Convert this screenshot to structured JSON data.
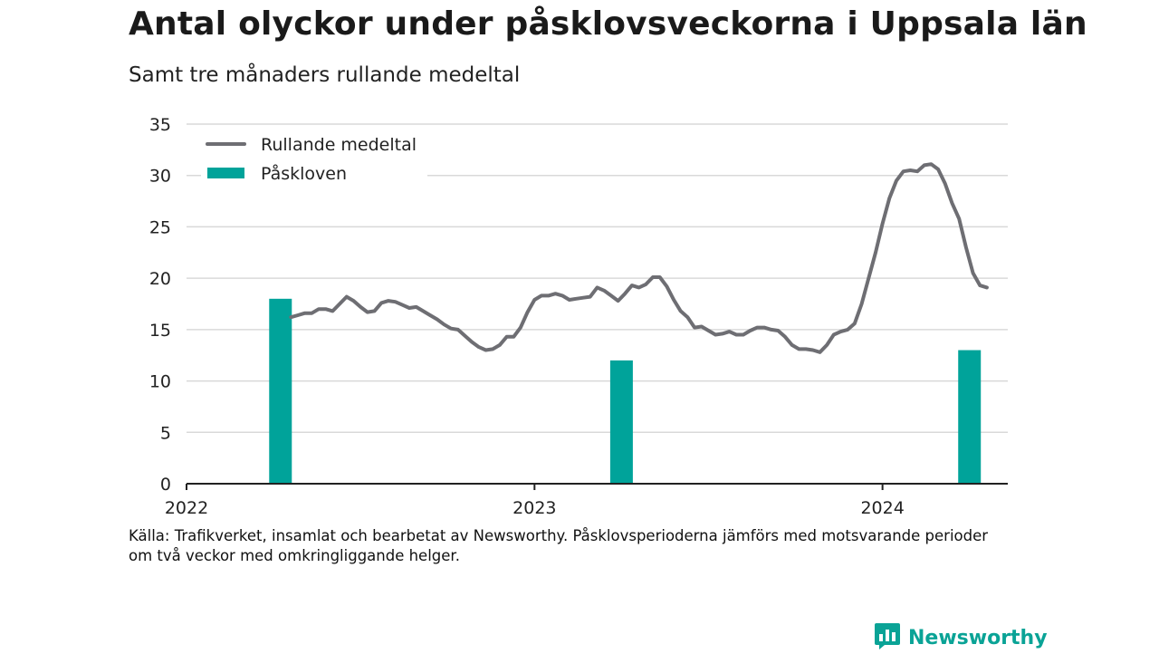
{
  "title": "Antal olyckor under påsklovsveckorna i Uppsala län",
  "subtitle": "Samt tre månaders rullande medeltal",
  "source_line1": "Källa: Trafikverket, insamlat och bearbetat av Newsworthy. Påsklovsperioderna jämförs med motsvarande perioder",
  "source_line2": "om två veckor med omkringliggande helger.",
  "brand": {
    "name": "Newsworthy",
    "logo_icon": "newsworthy-chart-bubble-icon"
  },
  "colors": {
    "line": "#6e6e73",
    "bar": "#00a39a",
    "grid": "#d9d9d9",
    "axis": "#222222"
  },
  "chart_data": {
    "type": "bar+line",
    "ylim": [
      0,
      35
    ],
    "yticks": [
      0,
      5,
      10,
      15,
      20,
      25,
      30,
      35
    ],
    "xlim": [
      2022.0,
      2024.36
    ],
    "xticks": [
      2022,
      2023,
      2024
    ],
    "xtick_labels": [
      "2022",
      "2023",
      "2024"
    ],
    "grid": true,
    "legend_position": "top-left",
    "series": [
      {
        "name": "Rullande medeltal",
        "type": "line",
        "x": [
          2022.3,
          2022.32,
          2022.34,
          2022.36,
          2022.38,
          2022.4,
          2022.42,
          2022.44,
          2022.46,
          2022.48,
          2022.5,
          2022.52,
          2022.54,
          2022.56,
          2022.58,
          2022.6,
          2022.62,
          2022.64,
          2022.66,
          2022.68,
          2022.7,
          2022.72,
          2022.74,
          2022.76,
          2022.78,
          2022.8,
          2022.82,
          2022.84,
          2022.86,
          2022.88,
          2022.9,
          2022.92,
          2022.94,
          2022.96,
          2022.98,
          2023.0,
          2023.02,
          2023.04,
          2023.06,
          2023.08,
          2023.1,
          2023.12,
          2023.14,
          2023.16,
          2023.18,
          2023.2,
          2023.22,
          2023.24,
          2023.26,
          2023.28,
          2023.3,
          2023.32,
          2023.34,
          2023.36,
          2023.38,
          2023.4,
          2023.42,
          2023.44,
          2023.46,
          2023.48,
          2023.5,
          2023.52,
          2023.54,
          2023.56,
          2023.58,
          2023.6,
          2023.62,
          2023.64,
          2023.66,
          2023.68,
          2023.7,
          2023.72,
          2023.74,
          2023.76,
          2023.78,
          2023.8,
          2023.82,
          2023.84,
          2023.86,
          2023.88,
          2023.9,
          2023.92,
          2023.94,
          2023.96,
          2023.98,
          2024.0,
          2024.02,
          2024.04,
          2024.06,
          2024.08,
          2024.1,
          2024.12,
          2024.14,
          2024.16,
          2024.18,
          2024.2
        ],
        "values": [
          16.2,
          16.4,
          16.6,
          16.6,
          17.0,
          17.0,
          16.8,
          17.5,
          18.2,
          17.8,
          17.2,
          16.7,
          16.8,
          17.6,
          17.8,
          17.7,
          17.4,
          17.1,
          17.2,
          16.8,
          16.4,
          16.0,
          15.5,
          15.1,
          15.0,
          14.4,
          13.8,
          13.3,
          13.0,
          13.1,
          13.5,
          14.3,
          14.3,
          15.2,
          16.7,
          17.9,
          18.3,
          18.3,
          18.5,
          18.3,
          17.9,
          18.0,
          18.1,
          18.2,
          19.1,
          18.8,
          18.3,
          17.8,
          18.5,
          19.3,
          19.1,
          19.4,
          20.1,
          20.1,
          19.2,
          17.9,
          16.8,
          16.2,
          15.2,
          15.3,
          14.9,
          14.5,
          14.6,
          14.8,
          14.5,
          14.5,
          14.9,
          15.2,
          15.2,
          15.0,
          14.9,
          14.3,
          13.5,
          13.1,
          13.1,
          13.0,
          12.8,
          13.5,
          14.5,
          14.8,
          15.0,
          15.6,
          17.5,
          20.0,
          22.5,
          25.3,
          27.8,
          29.5,
          30.4,
          30.5,
          30.4,
          31.0,
          31.1,
          30.6,
          29.2,
          27.3
        ]
      },
      {
        "name": "Påskloven",
        "type": "bar",
        "x": [
          2022.27,
          2023.25,
          2024.25
        ],
        "values": [
          18,
          12,
          13
        ]
      }
    ],
    "line_tail": {
      "x": [
        2024.22,
        2024.24,
        2024.26,
        2024.28,
        2024.3
      ],
      "values": [
        25.8,
        23.0,
        20.5,
        19.3,
        19.1
      ]
    }
  }
}
